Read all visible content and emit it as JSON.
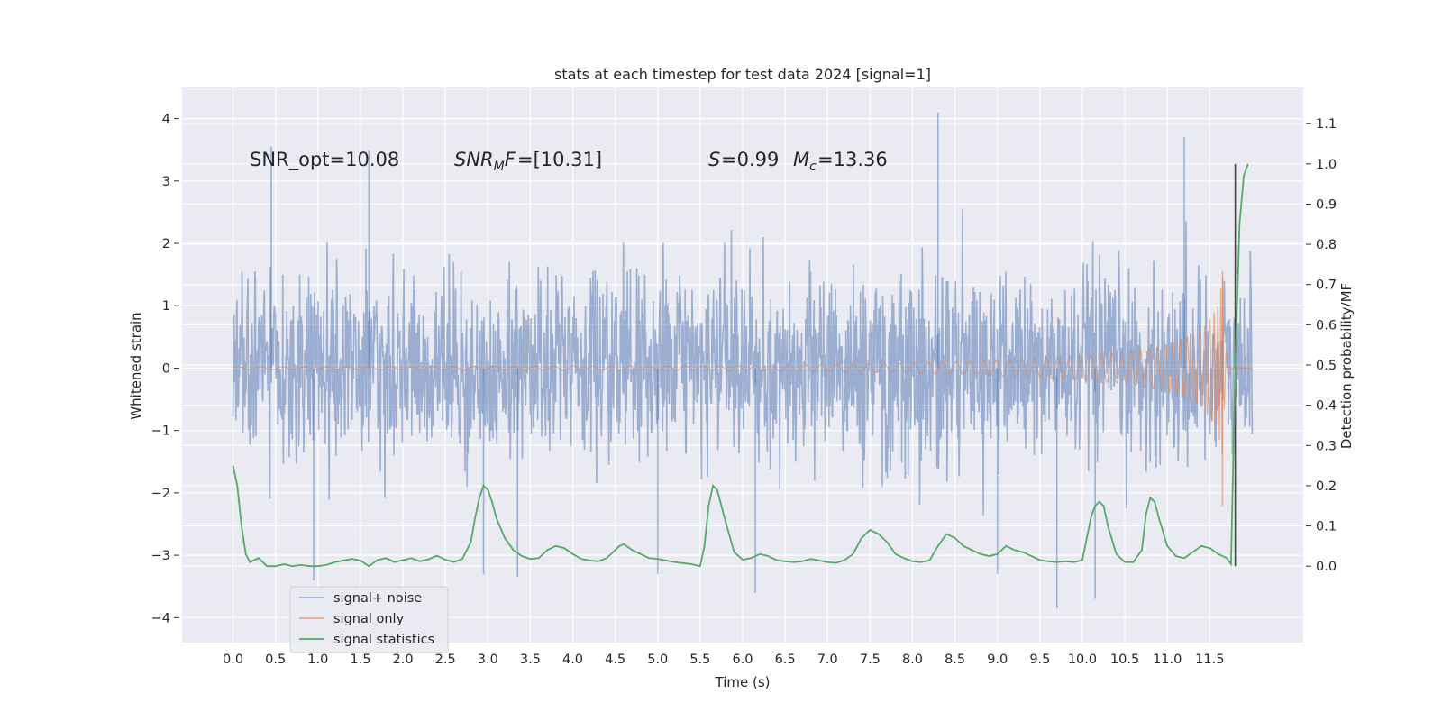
{
  "chart_data": {
    "type": "line",
    "title": "stats at each timestep for test data 2024 [signal=1]",
    "xlabel": "Time (s)",
    "ylabel": "Whitened strain",
    "y2label": "Detection probability/MF",
    "xlim": [
      -0.6,
      12.6
    ],
    "ylim": [
      -4.4,
      4.5
    ],
    "y2lim": [
      -0.19,
      1.19
    ],
    "xticks": [
      0.0,
      0.5,
      1.0,
      1.5,
      2.0,
      2.5,
      3.0,
      3.5,
      4.0,
      4.5,
      5.0,
      5.5,
      6.0,
      6.5,
      7.0,
      7.5,
      8.0,
      8.5,
      9.0,
      9.5,
      10.0,
      10.5,
      11.0,
      11.5
    ],
    "xtick_labels": [
      "0.0",
      "0.5",
      "1.0",
      "1.5",
      "2.0",
      "2.5",
      "3.0",
      "3.5",
      "4.0",
      "4.5",
      "5.0",
      "5.5",
      "6.0",
      "6.5",
      "7.0",
      "7.5",
      "8.0",
      "8.5",
      "9.0",
      "9.5",
      "10.0",
      "10.5",
      "11.0",
      "11.5"
    ],
    "yticks": [
      -4,
      -3,
      -2,
      -1,
      0,
      1,
      2,
      3,
      4
    ],
    "ytick_labels": [
      "−4",
      "−3",
      "−2",
      "−1",
      "0",
      "1",
      "2",
      "3",
      "4"
    ],
    "y2ticks": [
      0.0,
      0.1,
      0.2,
      0.3,
      0.4,
      0.5,
      0.6,
      0.7,
      0.8,
      0.9,
      1.0,
      1.1
    ],
    "y2tick_labels": [
      "0.0",
      "0.1",
      "0.2",
      "0.3",
      "0.4",
      "0.5",
      "0.6",
      "0.7",
      "0.8",
      "0.9",
      "1.0",
      "1.1"
    ],
    "grid": true,
    "legend_position": "bottom-left",
    "annotations": {
      "snr_opt": "SNR_opt=10.08",
      "snr_mf": "=[10.31]",
      "s_stat": "=0.99",
      "mc": "=13.36"
    },
    "vline": {
      "x": 11.8,
      "y2_range": [
        0.0,
        1.0
      ]
    },
    "series": [
      {
        "name": "signal+ noise",
        "color": "#4c72b0",
        "opacity": 0.5,
        "x_range": [
          0.0,
          12.0
        ],
        "samples": 2048,
        "noise_std": 0.75,
        "note_peaks": [
          {
            "x": 0.45,
            "y": 3.55
          },
          {
            "x": 1.6,
            "y": 3.5
          },
          {
            "x": 8.3,
            "y": 4.1
          },
          {
            "x": 11.2,
            "y": 3.7
          },
          {
            "x": 9.7,
            "y": -3.85
          },
          {
            "x": 10.15,
            "y": -3.7
          },
          {
            "x": 6.15,
            "y": -3.6
          },
          {
            "x": 3.35,
            "y": -3.35
          },
          {
            "x": 2.95,
            "y": -3.3
          },
          {
            "x": 0.95,
            "y": -3.4
          },
          {
            "x": 5.0,
            "y": -3.3
          },
          {
            "x": 9.0,
            "y": -3.3
          }
        ]
      },
      {
        "name": "signal only",
        "color": "#dd8452",
        "opacity": 0.6,
        "x_range": [
          0.0,
          12.0
        ],
        "chirp_peak_time": 11.65,
        "envelope": [
          {
            "x": 0.0,
            "y": 0.02
          },
          {
            "x": 6.0,
            "y": 0.04
          },
          {
            "x": 7.5,
            "y": 0.07
          },
          {
            "x": 8.5,
            "y": 0.1
          },
          {
            "x": 9.5,
            "y": 0.15
          },
          {
            "x": 10.5,
            "y": 0.25
          },
          {
            "x": 11.0,
            "y": 0.38
          },
          {
            "x": 11.4,
            "y": 0.6
          },
          {
            "x": 11.6,
            "y": 1.0
          },
          {
            "x": 11.65,
            "y": 1.55
          }
        ]
      },
      {
        "name": "signal statistics",
        "color": "#55a868",
        "axis": "right",
        "x": [
          0.0,
          0.05,
          0.1,
          0.15,
          0.2,
          0.3,
          0.4,
          0.5,
          0.6,
          0.7,
          0.8,
          0.9,
          1.0,
          1.1,
          1.2,
          1.3,
          1.4,
          1.5,
          1.6,
          1.7,
          1.8,
          1.9,
          2.0,
          2.1,
          2.2,
          2.3,
          2.4,
          2.5,
          2.6,
          2.7,
          2.8,
          2.85,
          2.9,
          2.95,
          3.0,
          3.05,
          3.1,
          3.2,
          3.3,
          3.4,
          3.5,
          3.6,
          3.7,
          3.8,
          3.9,
          4.0,
          4.1,
          4.2,
          4.3,
          4.4,
          4.5,
          4.55,
          4.6,
          4.7,
          4.8,
          4.9,
          5.0,
          5.2,
          5.4,
          5.5,
          5.55,
          5.6,
          5.65,
          5.7,
          5.8,
          5.9,
          6.0,
          6.1,
          6.2,
          6.3,
          6.4,
          6.5,
          6.6,
          6.7,
          6.8,
          6.9,
          7.0,
          7.1,
          7.2,
          7.3,
          7.4,
          7.5,
          7.6,
          7.7,
          7.8,
          7.9,
          8.0,
          8.1,
          8.2,
          8.3,
          8.4,
          8.5,
          8.6,
          8.7,
          8.8,
          8.9,
          9.0,
          9.1,
          9.2,
          9.3,
          9.4,
          9.5,
          9.6,
          9.7,
          9.8,
          9.9,
          10.0,
          10.1,
          10.15,
          10.2,
          10.25,
          10.3,
          10.4,
          10.5,
          10.6,
          10.7,
          10.75,
          10.8,
          10.85,
          10.9,
          11.0,
          11.1,
          11.2,
          11.3,
          11.4,
          11.5,
          11.6,
          11.7,
          11.75,
          11.8,
          11.85,
          11.9,
          11.95
        ],
        "values": [
          0.25,
          0.2,
          0.1,
          0.03,
          0.01,
          0.02,
          0.0,
          0.0,
          0.005,
          0.0,
          0.003,
          0.0,
          0.0,
          0.003,
          0.01,
          0.014,
          0.018,
          0.014,
          0.0,
          0.015,
          0.02,
          0.01,
          0.015,
          0.02,
          0.012,
          0.017,
          0.026,
          0.016,
          0.01,
          0.018,
          0.06,
          0.12,
          0.17,
          0.2,
          0.19,
          0.16,
          0.12,
          0.07,
          0.04,
          0.025,
          0.018,
          0.02,
          0.04,
          0.05,
          0.045,
          0.03,
          0.018,
          0.014,
          0.012,
          0.02,
          0.04,
          0.05,
          0.055,
          0.04,
          0.03,
          0.02,
          0.018,
          0.01,
          0.005,
          0.0,
          0.05,
          0.15,
          0.2,
          0.19,
          0.11,
          0.035,
          0.016,
          0.02,
          0.03,
          0.025,
          0.015,
          0.012,
          0.01,
          0.012,
          0.018,
          0.014,
          0.01,
          0.008,
          0.015,
          0.03,
          0.07,
          0.09,
          0.08,
          0.06,
          0.03,
          0.02,
          0.012,
          0.01,
          0.014,
          0.05,
          0.08,
          0.07,
          0.05,
          0.04,
          0.03,
          0.025,
          0.03,
          0.05,
          0.04,
          0.035,
          0.025,
          0.015,
          0.012,
          0.01,
          0.012,
          0.01,
          0.015,
          0.12,
          0.15,
          0.16,
          0.15,
          0.1,
          0.03,
          0.01,
          0.01,
          0.04,
          0.13,
          0.17,
          0.16,
          0.12,
          0.05,
          0.025,
          0.02,
          0.035,
          0.05,
          0.045,
          0.03,
          0.02,
          0.005,
          0.5,
          0.85,
          0.97,
          1.0
        ]
      }
    ]
  }
}
